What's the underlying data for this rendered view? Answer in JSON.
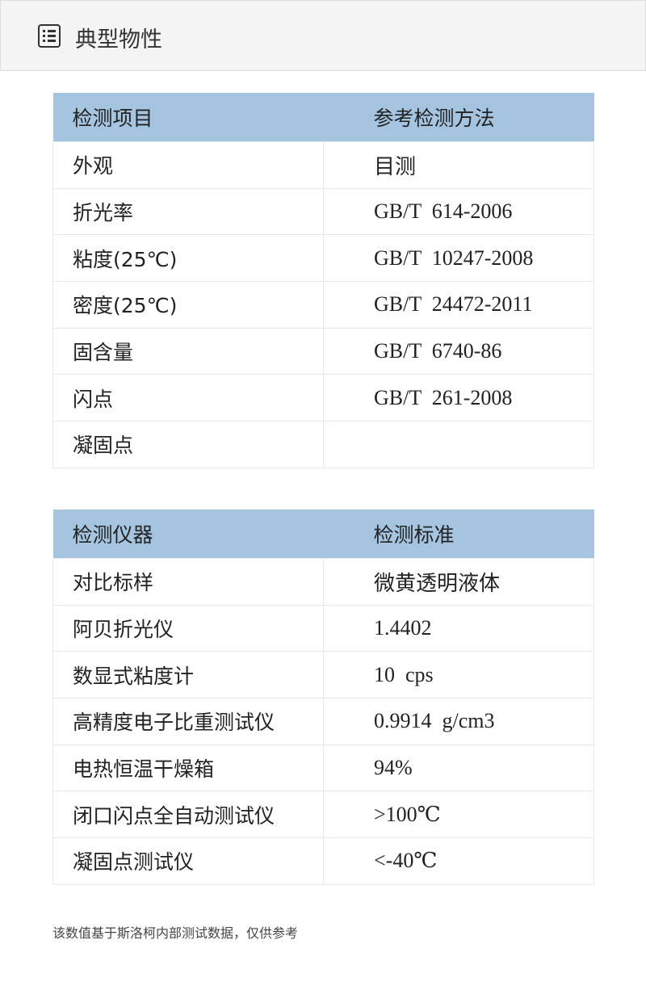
{
  "header": {
    "title": "典型物性",
    "icon": "list-icon"
  },
  "table1": {
    "headers": [
      "检测项目",
      "参考检测方法"
    ],
    "rows": [
      [
        "外观",
        "目测"
      ],
      [
        "折光率",
        "GB/T  614-2006"
      ],
      [
        "粘度(25℃)",
        "GB/T  10247-2008"
      ],
      [
        "密度(25℃)",
        "GB/T  24472-2011"
      ],
      [
        "固含量",
        "GB/T  6740-86"
      ],
      [
        "闪点",
        "GB/T  261-2008"
      ],
      [
        "凝固点",
        ""
      ]
    ]
  },
  "table2": {
    "headers": [
      "检测仪器",
      "检测标准"
    ],
    "rows": [
      [
        "对比标样",
        "微黄透明液体"
      ],
      [
        "阿贝折光仪",
        "1.4402"
      ],
      [
        "数显式粘度计",
        "10  cps"
      ],
      [
        "高精度电子比重测试仪",
        "0.9914  g/cm3"
      ],
      [
        "电热恒温干燥箱",
        "94%"
      ],
      [
        "闭口闪点全自动测试仪",
        ">100℃"
      ],
      [
        "凝固点测试仪",
        "<-40℃"
      ]
    ]
  },
  "footnote": "该数值基于斯洛柯内部测试数据，仅供参考",
  "colors": {
    "header_bg": "#f4f4f4",
    "table_header": "#a5c4e0"
  }
}
